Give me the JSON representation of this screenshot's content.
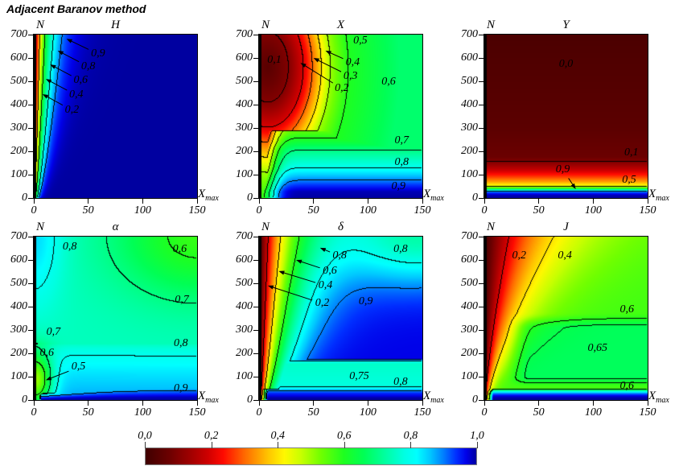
{
  "figure_title": "Adjacent Baranov method",
  "colors": {
    "background": "#ffffff",
    "axis": "#000000",
    "contour_line": "#000000",
    "left_edge_band": "#000000",
    "colorbar_border": "#7f7f7f"
  },
  "colormap_stops": [
    [
      0.0,
      "#3F0000"
    ],
    [
      0.07,
      "#6B0000"
    ],
    [
      0.13,
      "#9B0000"
    ],
    [
      0.19,
      "#D00000"
    ],
    [
      0.235,
      "#FF0A00"
    ],
    [
      0.3,
      "#FF6A00"
    ],
    [
      0.37,
      "#FFC400"
    ],
    [
      0.42,
      "#FFF800"
    ],
    [
      0.47,
      "#C8FF00"
    ],
    [
      0.53,
      "#70FF00"
    ],
    [
      0.6,
      "#1EFF20"
    ],
    [
      0.66,
      "#00FF55"
    ],
    [
      0.72,
      "#00FF9B"
    ],
    [
      0.78,
      "#00FFE0"
    ],
    [
      0.82,
      "#00FFFF"
    ],
    [
      0.86,
      "#00C8FF"
    ],
    [
      0.9,
      "#0080FF"
    ],
    [
      0.94,
      "#002EFF"
    ],
    [
      0.97,
      "#0000E8"
    ],
    [
      1.0,
      "#0000A0"
    ]
  ],
  "axes": {
    "y_label": "N",
    "x_label": "X",
    "x_label_sub": "max",
    "y_ticks": [
      "0",
      "100",
      "200",
      "300",
      "400",
      "500",
      "600",
      "700"
    ],
    "x_ticks": [
      "0",
      "50",
      "100",
      "150"
    ],
    "x_range": [
      0,
      150
    ],
    "y_range": [
      0,
      700
    ]
  },
  "colorbar": {
    "tick_labels": [
      "0,0",
      "0,2",
      "0,4",
      "0,6",
      "0,8",
      "1,0"
    ]
  },
  "chart_data": [
    {
      "id": "H",
      "type": "contour-heatmap",
      "title": "H",
      "x_axis_label": "Xmax",
      "y_axis_label": "N",
      "x_range": [
        0,
        150
      ],
      "y_range": [
        0,
        700
      ],
      "contour_levels": [
        0.2,
        0.4,
        0.6,
        0.8,
        0.9
      ],
      "labels": [
        {
          "text": "0,9",
          "x": 59,
          "N": 617,
          "arrow_to": [
            30,
            682
          ]
        },
        {
          "text": "0,8",
          "x": 50,
          "N": 563,
          "arrow_to": [
            22,
            631
          ]
        },
        {
          "text": "0,6",
          "x": 43,
          "N": 503,
          "arrow_to": [
            15,
            572
          ]
        },
        {
          "text": "0,4",
          "x": 39,
          "N": 441,
          "arrow_to": [
            11,
            510
          ]
        },
        {
          "text": "0,2",
          "x": 35,
          "N": 376,
          "arrow_to": [
            8,
            445
          ]
        }
      ]
    },
    {
      "id": "X",
      "type": "contour-heatmap",
      "title": "X",
      "x_axis_label": "Xmax",
      "y_axis_label": "N",
      "x_range": [
        0,
        150
      ],
      "y_range": [
        0,
        700
      ],
      "contour_levels": [
        0.1,
        0.2,
        0.3,
        0.4,
        0.5,
        0.6,
        0.7,
        0.8,
        0.9
      ],
      "labels": [
        {
          "text": "0,1",
          "x": 14,
          "N": 590
        },
        {
          "text": "0,5",
          "x": 93,
          "N": 672
        },
        {
          "text": "0,4",
          "x": 86,
          "N": 579,
          "arrow_to": [
            61,
            631
          ]
        },
        {
          "text": "0,3",
          "x": 84,
          "N": 521,
          "arrow_to": [
            50,
            600
          ]
        },
        {
          "text": "0,2",
          "x": 76,
          "N": 469,
          "arrow_to": [
            38,
            579
          ]
        },
        {
          "text": "0,6",
          "x": 119,
          "N": 497
        },
        {
          "text": "0,7",
          "x": 131,
          "N": 245
        },
        {
          "text": "0,8",
          "x": 131,
          "N": 152
        },
        {
          "text": "0,9",
          "x": 128,
          "N": 48
        }
      ]
    },
    {
      "id": "Y",
      "type": "contour-heatmap",
      "title": "Y",
      "x_axis_label": "Xmax",
      "y_axis_label": "N",
      "x_range": [
        0,
        150
      ],
      "y_range": [
        0,
        700
      ],
      "contour_levels": [
        0.1,
        0.5,
        0.9
      ],
      "labels": [
        {
          "text": "0,0",
          "x": 75,
          "N": 572
        },
        {
          "text": "0,1",
          "x": 135,
          "N": 192
        },
        {
          "text": "0,9",
          "x": 72,
          "N": 122,
          "arrow_to": [
            84,
            38
          ]
        },
        {
          "text": "0,5",
          "x": 133,
          "N": 77
        }
      ]
    },
    {
      "id": "alpha",
      "type": "contour-heatmap",
      "title": "α",
      "x_axis_label": "Xmax",
      "y_axis_label": "N",
      "x_range": [
        0,
        150
      ],
      "y_range": [
        0,
        700
      ],
      "contour_levels": [
        0.5,
        0.6,
        0.7,
        0.8,
        0.9
      ],
      "labels": [
        {
          "text": "0,8",
          "x": 33,
          "N": 655
        },
        {
          "text": "0,6",
          "x": 134,
          "N": 645
        },
        {
          "text": "0,7",
          "x": 136,
          "N": 428
        },
        {
          "text": "0,7",
          "x": 18,
          "N": 290
        },
        {
          "text": "0,6",
          "x": 12,
          "N": 200
        },
        {
          "text": "0,5",
          "x": 41,
          "N": 140,
          "arrow_to": [
            11,
            85
          ]
        },
        {
          "text": "0,8",
          "x": 135,
          "N": 241
        },
        {
          "text": "0,9",
          "x": 135,
          "N": 48
        }
      ]
    },
    {
      "id": "delta",
      "type": "contour-heatmap",
      "title": "δ",
      "x_axis_label": "Xmax",
      "y_axis_label": "N",
      "x_range": [
        0,
        150
      ],
      "y_range": [
        0,
        700
      ],
      "contour_levels": [
        0.2,
        0.4,
        0.6,
        0.8,
        0.9
      ],
      "labels": [
        {
          "text": "0,8",
          "x": 74,
          "N": 617,
          "arrow_to": [
            56,
            652
          ]
        },
        {
          "text": "0,6",
          "x": 65,
          "N": 552,
          "arrow_to": [
            34,
            600
          ]
        },
        {
          "text": "0,4",
          "x": 61,
          "N": 490,
          "arrow_to": [
            18,
            552
          ]
        },
        {
          "text": "0,2",
          "x": 58,
          "N": 414,
          "arrow_to": [
            8,
            490
          ]
        },
        {
          "text": "0,9",
          "x": 98,
          "N": 421
        },
        {
          "text": "0,8",
          "x": 130,
          "N": 645
        },
        {
          "text": "0,75",
          "x": 92,
          "N": 100
        },
        {
          "text": "0,8",
          "x": 130,
          "N": 76
        }
      ]
    },
    {
      "id": "J",
      "type": "contour-heatmap",
      "title": "J",
      "x_axis_label": "Xmax",
      "y_axis_label": "N",
      "x_range": [
        0,
        150
      ],
      "y_range": [
        0,
        700
      ],
      "contour_levels": [
        0.2,
        0.4,
        0.6,
        0.65
      ],
      "labels": [
        {
          "text": "0,2",
          "x": 32,
          "N": 617
        },
        {
          "text": "0,4",
          "x": 74,
          "N": 617
        },
        {
          "text": "0,6",
          "x": 131,
          "N": 386
        },
        {
          "text": "0,65",
          "x": 104,
          "N": 221
        },
        {
          "text": "0,6",
          "x": 131,
          "N": 59
        }
      ]
    }
  ]
}
